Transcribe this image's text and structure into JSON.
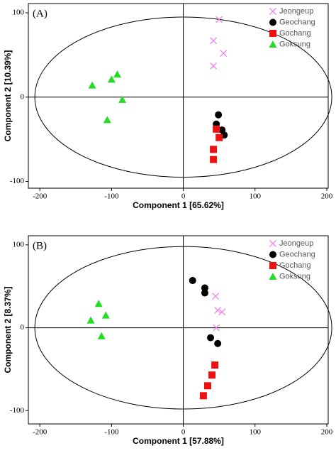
{
  "chart_data": [
    {
      "type": "scatter",
      "panel_label": "(A)",
      "x_label": "Component 1 [65.62%]",
      "y_label": "Component 2 [10.39%]",
      "xlim": [
        -216,
        202
      ],
      "ylim": [
        -108,
        111
      ],
      "xticks": [
        -200,
        -100,
        0,
        100,
        200
      ],
      "yticks": [
        -100,
        0,
        100
      ],
      "ellipse": {
        "cx": 0,
        "cy": 0,
        "rx": 207,
        "ry": 95
      },
      "legend": "upper right",
      "series": [
        {
          "name": "Jeongeup",
          "color": "#ee82ee",
          "marker": "x",
          "x": [
            50,
            42,
            56,
            42
          ],
          "y": [
            92,
            67,
            52,
            37
          ]
        },
        {
          "name": "Geochang",
          "color": "#000000",
          "marker": "circle",
          "x": [
            49,
            46,
            54,
            57
          ],
          "y": [
            -21,
            -32,
            -39,
            -45
          ]
        },
        {
          "name": "Gochang",
          "color": "#ee1111",
          "marker": "square",
          "x": [
            46,
            50,
            42,
            42
          ],
          "y": [
            -38,
            -48,
            -62,
            -74
          ]
        },
        {
          "name": "Goksung",
          "color": "#22dd22",
          "marker": "triangle",
          "x": [
            -127,
            -100,
            -92,
            -85,
            -106
          ],
          "y": [
            14,
            21,
            27,
            -3,
            -27
          ]
        }
      ]
    },
    {
      "type": "scatter",
      "panel_label": "(B)",
      "x_label": "Component 1 [57.88%]",
      "y_label": "Component 2 [8.37%]",
      "xlim": [
        -216,
        202
      ],
      "ylim": [
        -116,
        111
      ],
      "xticks": [
        -200,
        -100,
        0,
        100,
        200
      ],
      "yticks": [
        -100,
        0,
        100
      ],
      "ellipse": {
        "cx": 0,
        "cy": 0,
        "rx": 207,
        "ry": 98
      },
      "legend": "upper right",
      "series": [
        {
          "name": "Jeongeup",
          "color": "#ee82ee",
          "marker": "x",
          "x": [
            45,
            48,
            54,
            46
          ],
          "y": [
            38,
            21,
            19,
            0
          ]
        },
        {
          "name": "Geochang",
          "color": "#000000",
          "marker": "circle",
          "x": [
            13,
            30,
            30,
            38,
            48
          ],
          "y": [
            57,
            48,
            42,
            -12,
            -19
          ]
        },
        {
          "name": "Gochang",
          "color": "#ee1111",
          "marker": "square",
          "x": [
            44,
            40,
            34,
            28
          ],
          "y": [
            -45,
            -57,
            -70,
            -82
          ]
        },
        {
          "name": "Goksung",
          "color": "#22dd22",
          "marker": "triangle",
          "x": [
            -118,
            -108,
            -129,
            -114
          ],
          "y": [
            29,
            15,
            9,
            -10
          ]
        }
      ]
    }
  ]
}
